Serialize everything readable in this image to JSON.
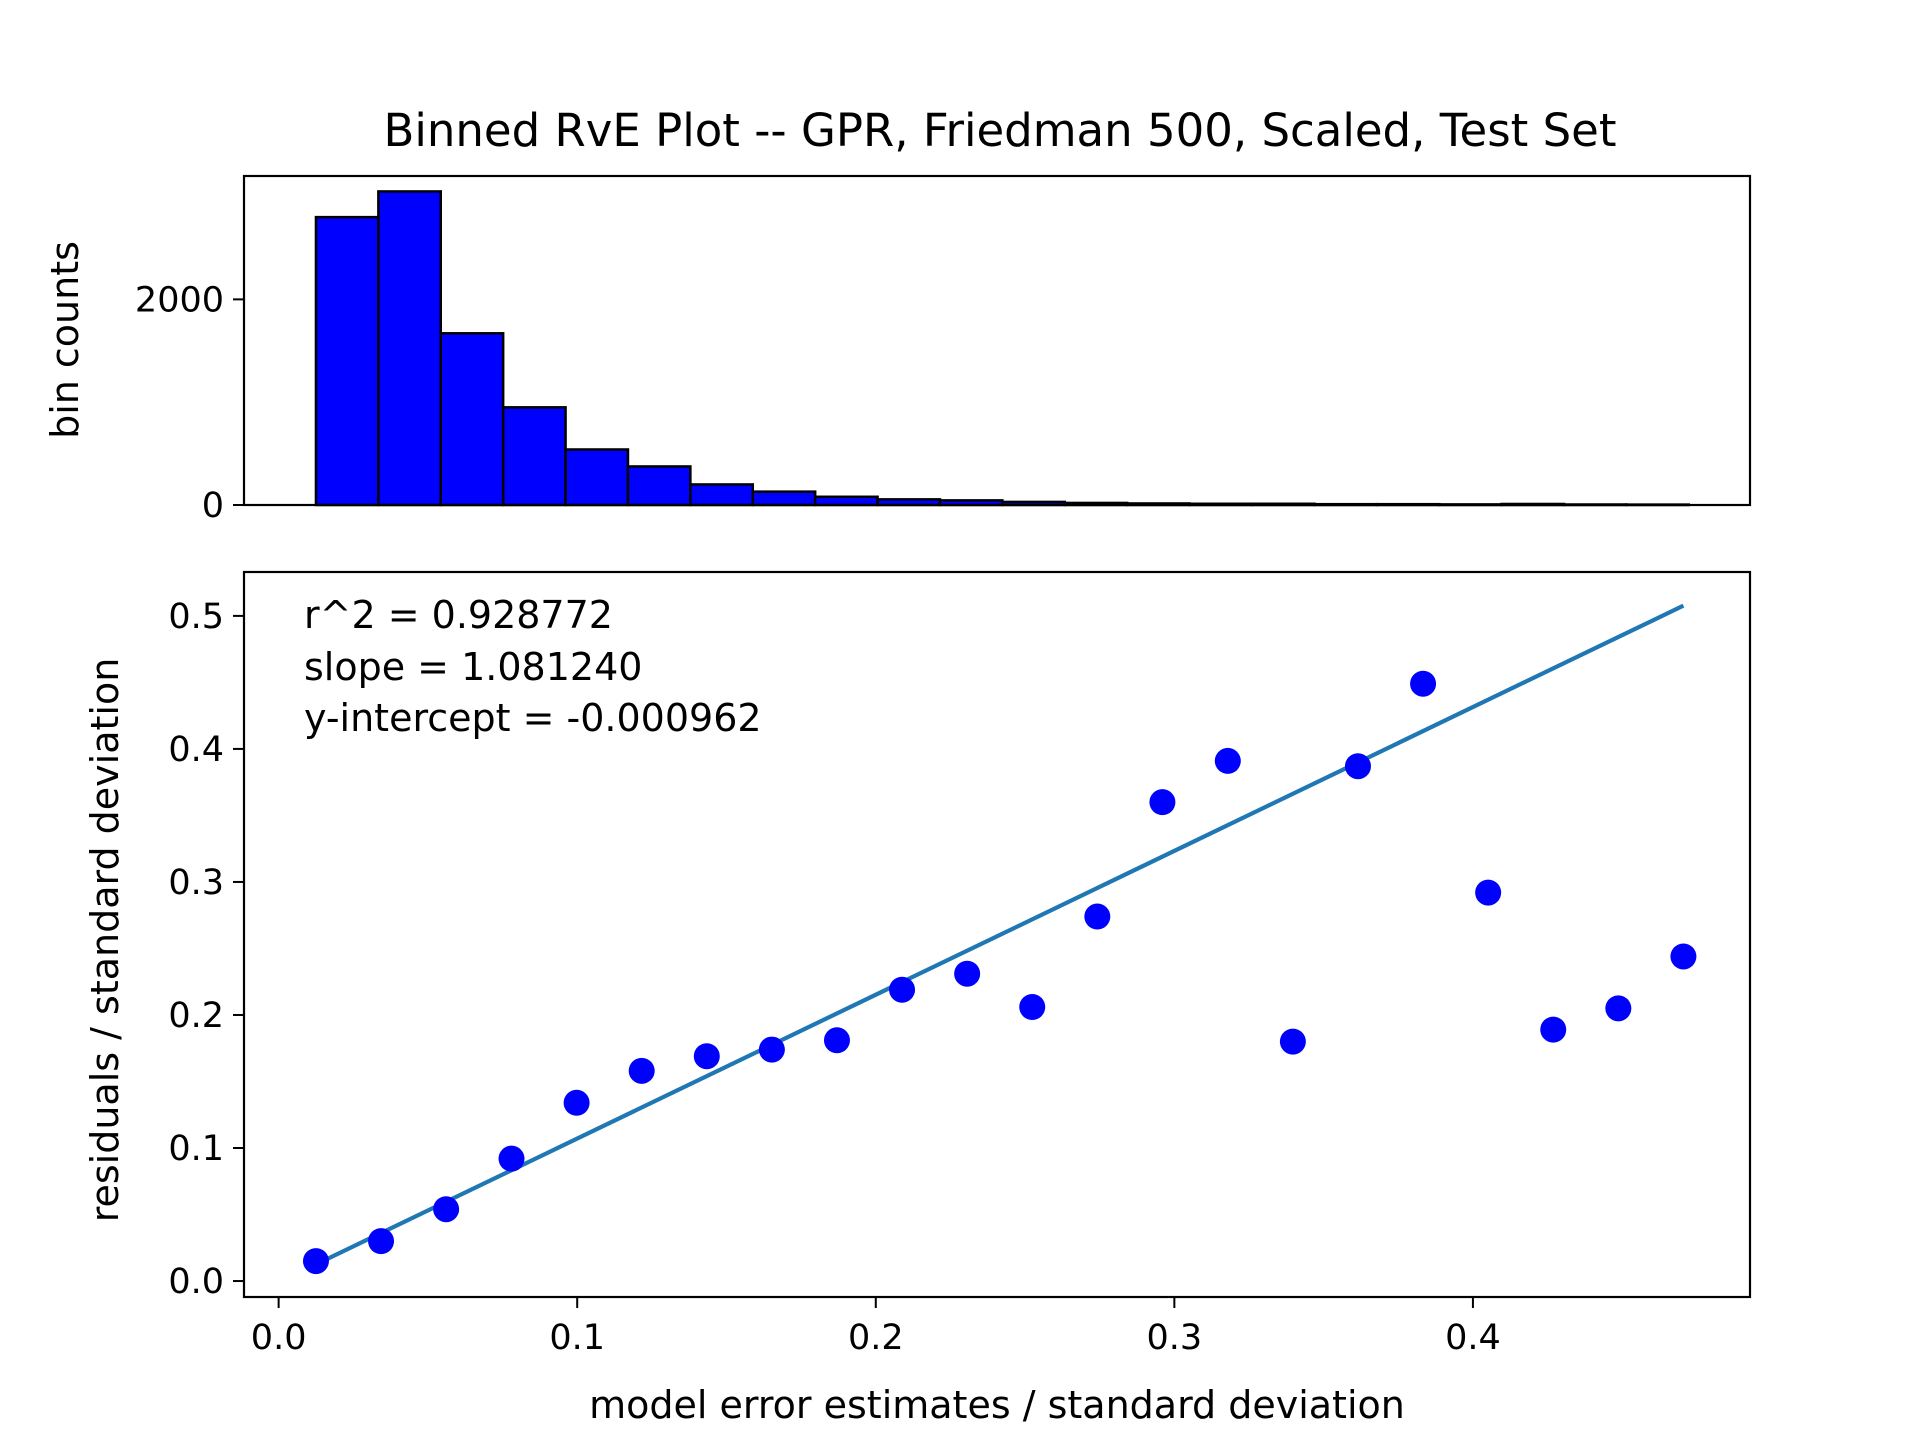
{
  "chart_data": [
    {
      "type": "bar",
      "title": "Binned RvE Plot -- GPR, Friedman 500, Scaled, Test Set",
      "ylabel": "bin counts",
      "xlim": [
        -0.0116,
        0.4928
      ],
      "ylim": [
        0,
        3200
      ],
      "yticks": [
        0,
        2000
      ],
      "bar_color": "#0000ff",
      "edge_color": "#000000",
      "bin_edges": [
        0.0125,
        0.0334,
        0.0543,
        0.0752,
        0.0961,
        0.117,
        0.1379,
        0.1588,
        0.1797,
        0.2006,
        0.2215,
        0.2424,
        0.2633,
        0.2842,
        0.3051,
        0.326,
        0.3469,
        0.3678,
        0.3887,
        0.4096,
        0.4305,
        0.4514,
        0.4723
      ],
      "values": [
        2800,
        3050,
        1670,
        950,
        540,
        375,
        200,
        130,
        80,
        55,
        45,
        30,
        20,
        15,
        12,
        12,
        8,
        8,
        6,
        10,
        5,
        4
      ]
    },
    {
      "type": "scatter",
      "xlabel": "model error estimates / standard deviation",
      "ylabel": "residuals / standard deviation",
      "xlim": [
        -0.0116,
        0.4928
      ],
      "ylim": [
        -0.012,
        0.533
      ],
      "xticks": [
        0.0,
        0.1,
        0.2,
        0.3,
        0.4
      ],
      "xtick_labels": [
        "0.0",
        "0.1",
        "0.2",
        "0.3",
        "0.4"
      ],
      "yticks": [
        0.0,
        0.1,
        0.2,
        0.3,
        0.4,
        0.5
      ],
      "ytick_labels": [
        "0.0",
        "0.1",
        "0.2",
        "0.3",
        "0.4",
        "0.5"
      ],
      "point_color": "#0000ff",
      "line_color": "#1f77b4",
      "points": {
        "x": [
          0.0125,
          0.0343,
          0.0561,
          0.078,
          0.0998,
          0.1216,
          0.1434,
          0.1652,
          0.187,
          0.2088,
          0.2306,
          0.2524,
          0.2742,
          0.296,
          0.3179,
          0.3397,
          0.3615,
          0.3833,
          0.4051,
          0.4269,
          0.4487,
          0.4705
        ],
        "y": [
          0.015,
          0.03,
          0.054,
          0.092,
          0.134,
          0.158,
          0.169,
          0.174,
          0.181,
          0.219,
          0.231,
          0.206,
          0.274,
          0.36,
          0.391,
          0.18,
          0.387,
          0.449,
          0.292,
          0.189,
          0.205,
          0.244
        ]
      },
      "fit_line": {
        "x": [
          0.0125,
          0.4705
        ],
        "y": [
          0.0125,
          0.5077
        ]
      },
      "annotations": [
        "r^2 = 0.928772",
        "slope = 1.081240",
        "y-intercept = -0.000962"
      ]
    }
  ]
}
